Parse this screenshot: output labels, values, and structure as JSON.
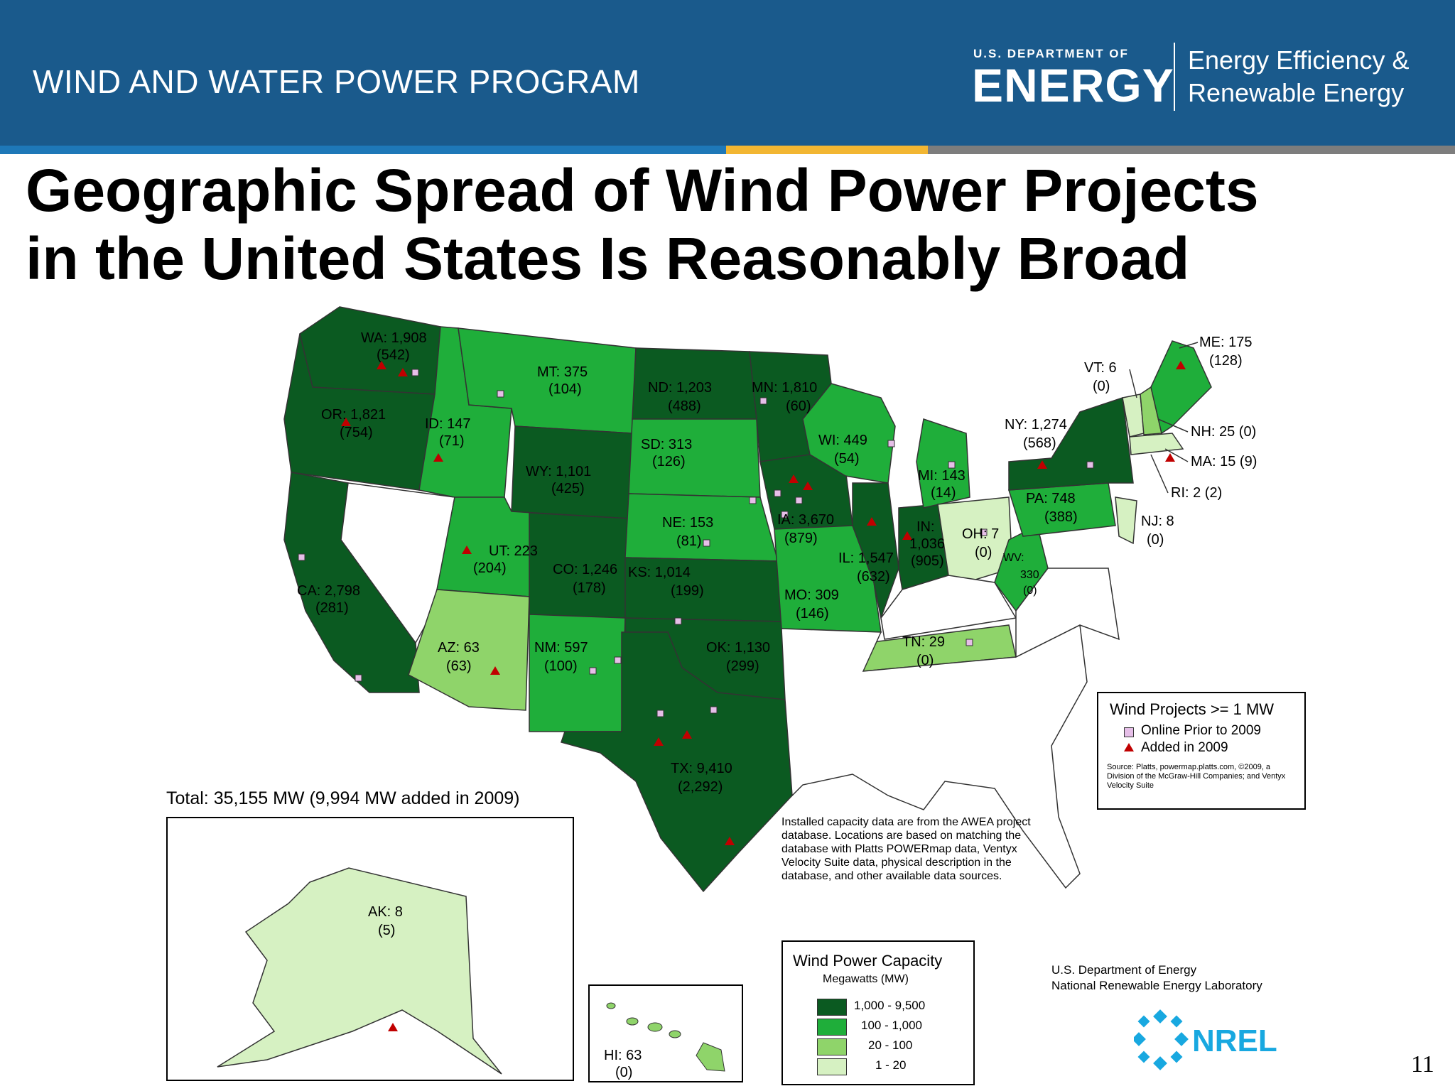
{
  "header": {
    "program": "WIND AND WATER POWER PROGRAM",
    "doe_small": "U.S. DEPARTMENT OF",
    "doe_big": "ENERGY",
    "eere_line1": "Energy Efficiency &",
    "eere_line2": "Renewable Energy"
  },
  "title_line1": "Geographic Spread of Wind Power Projects",
  "title_line2": "in the United States Is Reasonably Broad",
  "colors": {
    "header_blue": "#1a5a8c",
    "cap_1000_9500": "#0b5a21",
    "cap_100_1000": "#1fae3a",
    "cap_20_100": "#8fd46a",
    "cap_1_20": "#d6f1c2",
    "no_data": "#ffffff",
    "online_marker": "#e6bfe8",
    "added_marker": "#c00000"
  },
  "states": {
    "WA": {
      "label": "WA: 1,908",
      "added": "(542)"
    },
    "OR": {
      "label": "OR: 1,821",
      "added": "(754)"
    },
    "CA": {
      "label": "CA: 2,798",
      "added": "(281)"
    },
    "ID": {
      "label": "ID: 147",
      "added": "(71)"
    },
    "MT": {
      "label": "MT: 375",
      "added": "(104)"
    },
    "WY": {
      "label": "WY: 1,101",
      "added": "(425)"
    },
    "UT": {
      "label": "UT: 223",
      "added": "(204)"
    },
    "AZ": {
      "label": "AZ: 63",
      "added": "(63)"
    },
    "CO": {
      "label": "CO: 1,246",
      "added": "(178)"
    },
    "NM": {
      "label": "NM: 597",
      "added": "(100)"
    },
    "ND": {
      "label": "ND: 1,203",
      "added": "(488)"
    },
    "SD": {
      "label": "SD: 313",
      "added": "(126)"
    },
    "NE": {
      "label": "NE: 153",
      "added": "(81)"
    },
    "KS": {
      "label": "KS: 1,014",
      "added": "(199)"
    },
    "OK": {
      "label": "OK: 1,130",
      "added": "(299)"
    },
    "TX": {
      "label": "TX: 9,410",
      "added": "(2,292)"
    },
    "MN": {
      "label": "MN: 1,810",
      "added": "(60)"
    },
    "IA": {
      "label": "IA: 3,670",
      "added": "(879)"
    },
    "MO": {
      "label": "MO: 309",
      "added": "(146)"
    },
    "WI": {
      "label": "WI: 449",
      "added": "(54)"
    },
    "IL": {
      "label": "IL: 1,547",
      "added": "(632)"
    },
    "IN": {
      "label": "IN:",
      "value": "1,036",
      "added": "(905)"
    },
    "MI": {
      "label": "MI: 143",
      "added": "(14)"
    },
    "OH": {
      "label": "OH: 7",
      "added": "(0)"
    },
    "TN": {
      "label": "TN: 29",
      "added": "(0)"
    },
    "WV": {
      "label": "WV:",
      "value": "330",
      "added": "(0)"
    },
    "PA": {
      "label": "PA: 748",
      "added": "(388)"
    },
    "NY": {
      "label": "NY: 1,274",
      "added": "(568)"
    },
    "VT": {
      "label": "VT: 6",
      "added": "(0)"
    },
    "NJ": {
      "label": "NJ: 8",
      "added": "(0)"
    },
    "ME": {
      "label": "ME: 175",
      "added": "(128)"
    },
    "NH": {
      "label": "NH: 25 (0)"
    },
    "MA": {
      "label": "MA: 15 (9)"
    },
    "RI": {
      "label": "RI: 2 (2)"
    },
    "AK": {
      "label": "AK: 8",
      "added": "(5)"
    },
    "HI": {
      "label": "HI: 63",
      "added": "(0)"
    }
  },
  "total": "Total:  35,155 MW (9,994 MW added in 2009)",
  "projects_legend": {
    "title": "Wind Projects >= 1 MW",
    "online": "Online Prior to 2009",
    "added": "Added in 2009",
    "source": "Source: Platts, powermap.platts.com, ©2009, a Division of the McGraw-Hill Companies; and Ventyx Velocity Suite"
  },
  "note": "Installed capacity data are from the AWEA project database.  Locations are based on matching the database with Platts POWERmap data, Ventyx Velocity Suite data, physical description in the database, and other available data sources.",
  "capacity_legend": {
    "title": "Wind Power Capacity",
    "subtitle": "Megawatts (MW)",
    "ranges": [
      "1,000 - 9,500",
      "100 - 1,000",
      "20 - 100",
      "1 - 20"
    ]
  },
  "credit_line1": "U.S. Department of Energy",
  "credit_line2": "National Renewable Energy Laboratory",
  "nrel_logo": "NREL",
  "page_number": "11"
}
